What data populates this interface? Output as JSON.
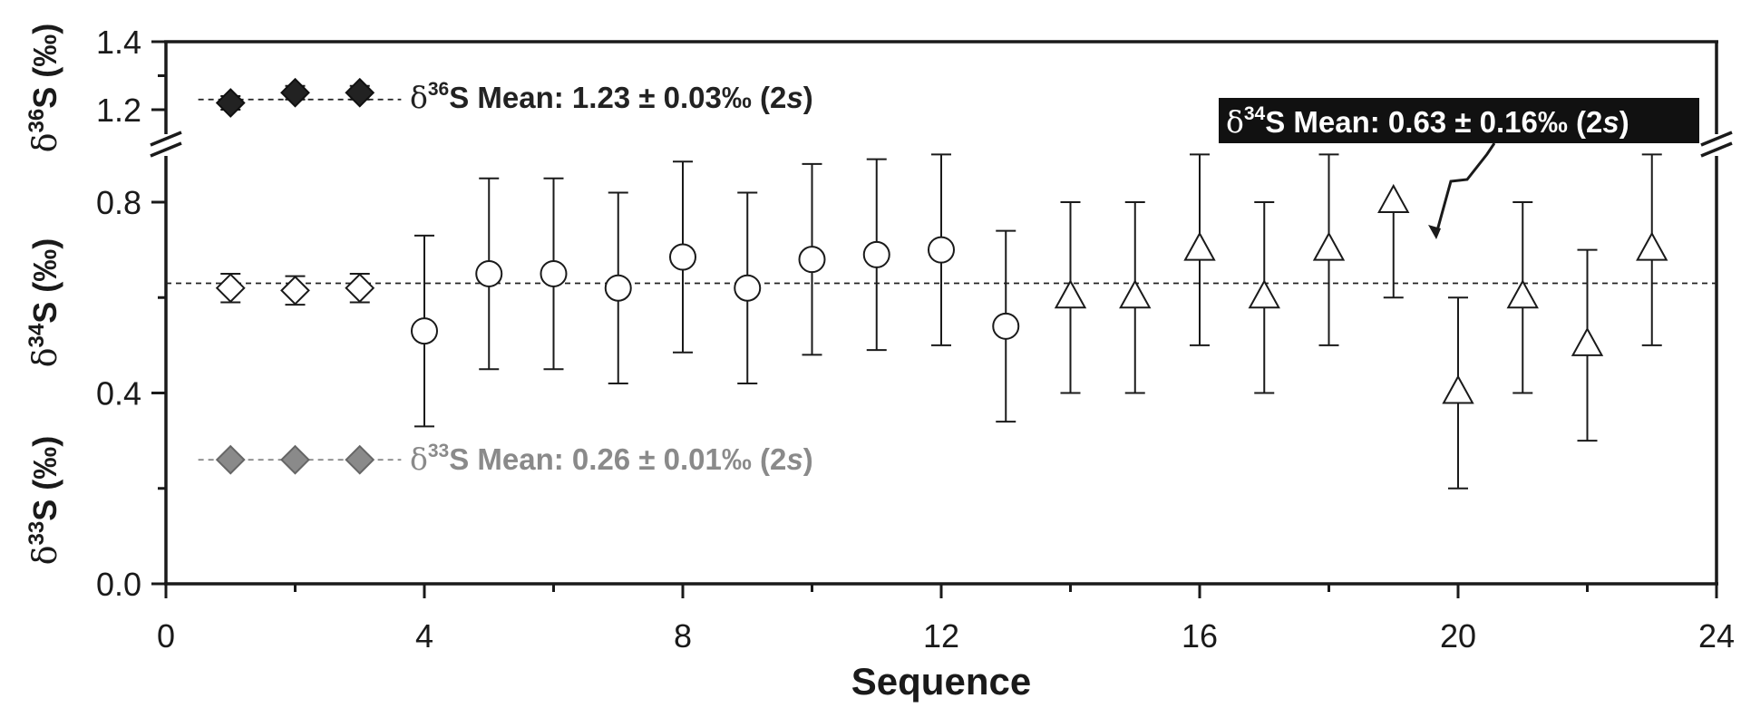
{
  "chart_data": {
    "type": "scatter",
    "xlabel": "Sequence",
    "xlim": [
      0,
      24
    ],
    "x_ticks": [
      "0",
      "4",
      "8",
      "12",
      "16",
      "20",
      "24"
    ],
    "y_ticks_main": [
      "0.0",
      "0.4",
      "0.8"
    ],
    "y_ticks_upper": [
      "1.2",
      "1.4"
    ],
    "ylabels": {
      "d36": {
        "delta": "δ",
        "sup": "36",
        "rest": "S (‰)"
      },
      "d34": {
        "delta": "δ",
        "sup": "34",
        "rest": "S (‰)"
      },
      "d33": {
        "delta": "δ",
        "sup": "33",
        "rest": "S (‰)"
      }
    },
    "axis_break": true,
    "grid": false,
    "colors": {
      "d36": "#222222",
      "d34": "#ffffff",
      "d33": "#8a8a8a",
      "frame": "#1a1a1a",
      "label_box": "#111111"
    },
    "series": [
      {
        "marker": "diamond-filled-black",
        "axis": "upper",
        "points": [
          {
            "x": 1,
            "y": 1.22,
            "err": 0.02
          },
          {
            "x": 2,
            "y": 1.25,
            "err": 0.02
          },
          {
            "x": 3,
            "y": 1.25,
            "err": 0.02
          }
        ]
      },
      {
        "marker": "diamond-open",
        "axis": "main",
        "points": [
          {
            "x": 1,
            "y": 0.62,
            "err": 0.03
          },
          {
            "x": 2,
            "y": 0.615,
            "err": 0.03
          },
          {
            "x": 3,
            "y": 0.62,
            "err": 0.03
          }
        ]
      },
      {
        "marker": "circle-open",
        "axis": "main",
        "points": [
          {
            "x": 4,
            "y": 0.53,
            "err": 0.2
          },
          {
            "x": 5,
            "y": 0.65,
            "err": 0.2
          },
          {
            "x": 6,
            "y": 0.65,
            "err": 0.2
          },
          {
            "x": 7,
            "y": 0.62,
            "err": 0.2
          },
          {
            "x": 8,
            "y": 0.685,
            "err": 0.2
          },
          {
            "x": 9,
            "y": 0.62,
            "err": 0.2
          },
          {
            "x": 10,
            "y": 0.68,
            "err": 0.2
          },
          {
            "x": 11,
            "y": 0.69,
            "err": 0.2
          },
          {
            "x": 12,
            "y": 0.7,
            "err": 0.2
          },
          {
            "x": 13,
            "y": 0.54,
            "err": 0.2
          }
        ]
      },
      {
        "marker": "triangle-open",
        "axis": "main",
        "points": [
          {
            "x": 14,
            "y": 0.6,
            "err": 0.2
          },
          {
            "x": 15,
            "y": 0.6,
            "err": 0.2
          },
          {
            "x": 16,
            "y": 0.7,
            "err": 0.2
          },
          {
            "x": 17,
            "y": 0.6,
            "err": 0.2
          },
          {
            "x": 18,
            "y": 0.7,
            "err": 0.2
          },
          {
            "x": 19,
            "y": 0.8,
            "err": 0.2,
            "upper_only": false,
            "lower_only": true
          },
          {
            "x": 20,
            "y": 0.4,
            "err": 0.2
          },
          {
            "x": 21,
            "y": 0.6,
            "err": 0.2
          },
          {
            "x": 22,
            "y": 0.5,
            "err": 0.2
          },
          {
            "x": 23,
            "y": 0.7,
            "err": 0.2
          }
        ]
      },
      {
        "marker": "diamond-filled-gray",
        "axis": "main",
        "points": [
          {
            "x": 1,
            "y": 0.26,
            "err": 0.0
          },
          {
            "x": 2,
            "y": 0.26,
            "err": 0.0
          },
          {
            "x": 3,
            "y": 0.26,
            "err": 0.0
          }
        ]
      }
    ],
    "mean_lines": [
      {
        "axis": "upper",
        "y": 1.23,
        "x_start": 0.5,
        "x_end": 3.5
      },
      {
        "axis": "main",
        "y": 0.63,
        "x_start": 0,
        "x_end": 24
      },
      {
        "axis": "main",
        "y": 0.26,
        "x_start": 0.5,
        "x_end": 3.5
      }
    ],
    "annotations": {
      "d36": {
        "delta": "δ",
        "sup": "36",
        "text": "S Mean: 1.23 ± 0.03‰ (2",
        "s": "s",
        "close": ")"
      },
      "d34": {
        "delta": "δ",
        "sup": "34",
        "text": "S Mean: 0.63 ± 0.16‰ (2",
        "s": "s",
        "close": ")"
      },
      "d33": {
        "delta": "δ",
        "sup": "33",
        "text": "S Mean: 0.26 ± 0.01‰ (2",
        "s": "s",
        "close": ")"
      }
    }
  }
}
